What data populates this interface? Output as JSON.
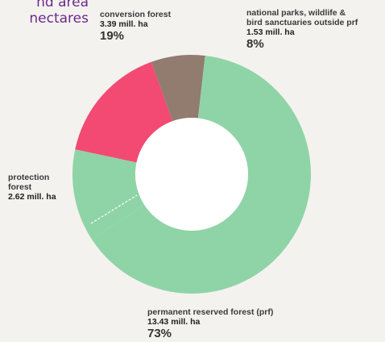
{
  "title_lines": [
    "nd area",
    "nectares"
  ],
  "chart_data": {
    "type": "pie",
    "style": "donut",
    "slices": [
      {
        "name": "conversion forest",
        "value": 3.39,
        "value_label": "3.39 mill. ha",
        "percent_label": "19%",
        "color": "#f24a72"
      },
      {
        "name": "national parks, wildlife & bird sanctuaries outside prf",
        "value": 1.53,
        "value_label": "1.53 mill. ha",
        "percent_label": "8%",
        "color": "#917c6f"
      },
      {
        "name": "permanent reserved forest (prf)",
        "value": 13.43,
        "value_label": "13.43 mill. ha",
        "percent_label": "73%",
        "color": "#8fd4a6"
      },
      {
        "name": "protection forest",
        "value": 2.62,
        "value_label": "2.62 mill. ha",
        "percent_label": "",
        "color": "#8fd4a6"
      }
    ],
    "labels": {
      "conversion": {
        "name": "conversion forest",
        "value": "3.39 mill. ha",
        "pct": "19%"
      },
      "national_parks": {
        "name_line1": "national parks, wildlife &",
        "name_line2": "bird sanctuaries outside prf",
        "value": "1.53 mill. ha",
        "pct": "8%"
      },
      "permanent": {
        "name": "permanent reserved forest (prf)",
        "value": "13.43 mill. ha",
        "pct": "73%"
      },
      "protection": {
        "name_line1": "protection",
        "name_line2": "forest",
        "value": "2.62 mill. ha"
      }
    },
    "legend": "none"
  }
}
